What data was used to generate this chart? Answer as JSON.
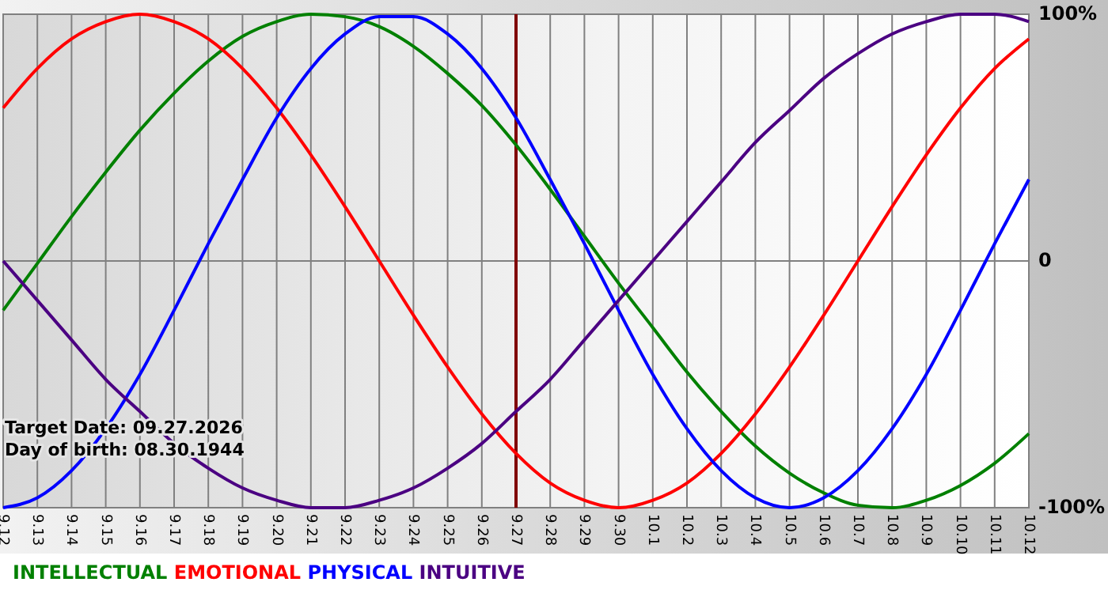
{
  "chart_data": {
    "type": "line",
    "categories": [
      "9.12",
      "9.13",
      "9.14",
      "9.15",
      "9.16",
      "9.17",
      "9.18",
      "9.19",
      "9.20",
      "9.21",
      "9.22",
      "9.23",
      "9.24",
      "9.25",
      "9.26",
      "9.27",
      "9.28",
      "9.29",
      "9.30",
      "10.1",
      "10.2",
      "10.3",
      "10.4",
      "10.5",
      "10.6",
      "10.7",
      "10.8",
      "10.9",
      "10.10",
      "10.11",
      "10.12"
    ],
    "series": [
      {
        "name": "INTELLECTUAL",
        "color": "#008000",
        "values": [
          -20,
          -1,
          18,
          36,
          53,
          68,
          81,
          91,
          97,
          100,
          99,
          95,
          87,
          76,
          63,
          47,
          29,
          10,
          -9,
          -27,
          -45,
          -61,
          -75,
          -86,
          -94,
          -99,
          -100,
          -97,
          -91,
          -82,
          -70
        ]
      },
      {
        "name": "EMOTIONAL",
        "color": "#ff0000",
        "values": [
          62,
          78,
          90,
          97,
          100,
          97,
          90,
          78,
          62,
          43,
          22,
          0,
          -22,
          -43,
          -62,
          -78,
          -90,
          -97,
          -100,
          -97,
          -90,
          -78,
          -62,
          -43,
          -22,
          0,
          22,
          43,
          62,
          78,
          90
        ]
      },
      {
        "name": "PHYSICAL",
        "color": "#0000ff",
        "values": [
          -100,
          -96,
          -85,
          -68,
          -46,
          -20,
          7,
          33,
          58,
          78,
          92,
          99,
          99,
          92,
          78,
          58,
          33,
          7,
          -20,
          -46,
          -68,
          -85,
          -96,
          -100,
          -96,
          -85,
          -68,
          -46,
          -20,
          7,
          33
        ]
      },
      {
        "name": "INTUITIVE",
        "color": "#4b0082",
        "values": [
          0,
          -16,
          -32,
          -48,
          -61,
          -74,
          -84,
          -92,
          -97,
          -100,
          -100,
          -97,
          -92,
          -84,
          -74,
          -61,
          -48,
          -32,
          -16,
          0,
          16,
          32,
          48,
          61,
          74,
          84,
          92,
          97,
          100,
          100,
          97
        ]
      }
    ],
    "ylim": [
      -100,
      100
    ],
    "yticks": [
      {
        "value": -100,
        "label": "-100%"
      },
      0,
      {
        "value": 100,
        "label": "100%"
      }
    ],
    "grid": true,
    "legend": "bottom left",
    "ref_lines": [
      {
        "axis": "x",
        "value": "9.27",
        "color": "#800000"
      }
    ],
    "annotations": [
      "Target Date: 09.27.2026",
      "Day of birth: 08.30.1944"
    ]
  }
}
